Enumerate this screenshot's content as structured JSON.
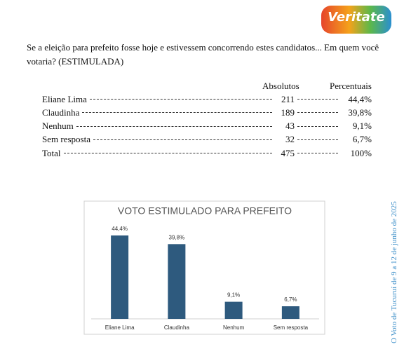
{
  "logo": {
    "text": "Veritate"
  },
  "question": "Se a eleição para prefeito fosse hoje e estivessem concorrendo estes candidatos... Em quem você votaria? (ESTIMULADA)",
  "table": {
    "headers": [
      "Absolutos",
      "Percentuais"
    ],
    "rows": [
      [
        "Eliane Lima",
        "211",
        "44,4%"
      ],
      [
        "Claudinha",
        "189",
        "39,8%"
      ],
      [
        "Nenhum",
        "43",
        "9,1%"
      ],
      [
        "Sem resposta",
        "32",
        "6,7%"
      ],
      [
        "Total",
        "475",
        "100%"
      ]
    ]
  },
  "side_note": "O Voto de Tucuruí de 9 a 12 de junho de 2025",
  "chart_data": {
    "type": "bar",
    "title": "VOTO ESTIMULADO PARA PREFEITO",
    "categories": [
      "Eliane Lima",
      "Claudinha",
      "Nenhum",
      "Sem resposta"
    ],
    "values": [
      44.4,
      39.8,
      9.1,
      6.7
    ],
    "value_labels": [
      "44,4%",
      "39,8%",
      "9,1%",
      "6,7%"
    ],
    "color": "#2e5a7e"
  }
}
